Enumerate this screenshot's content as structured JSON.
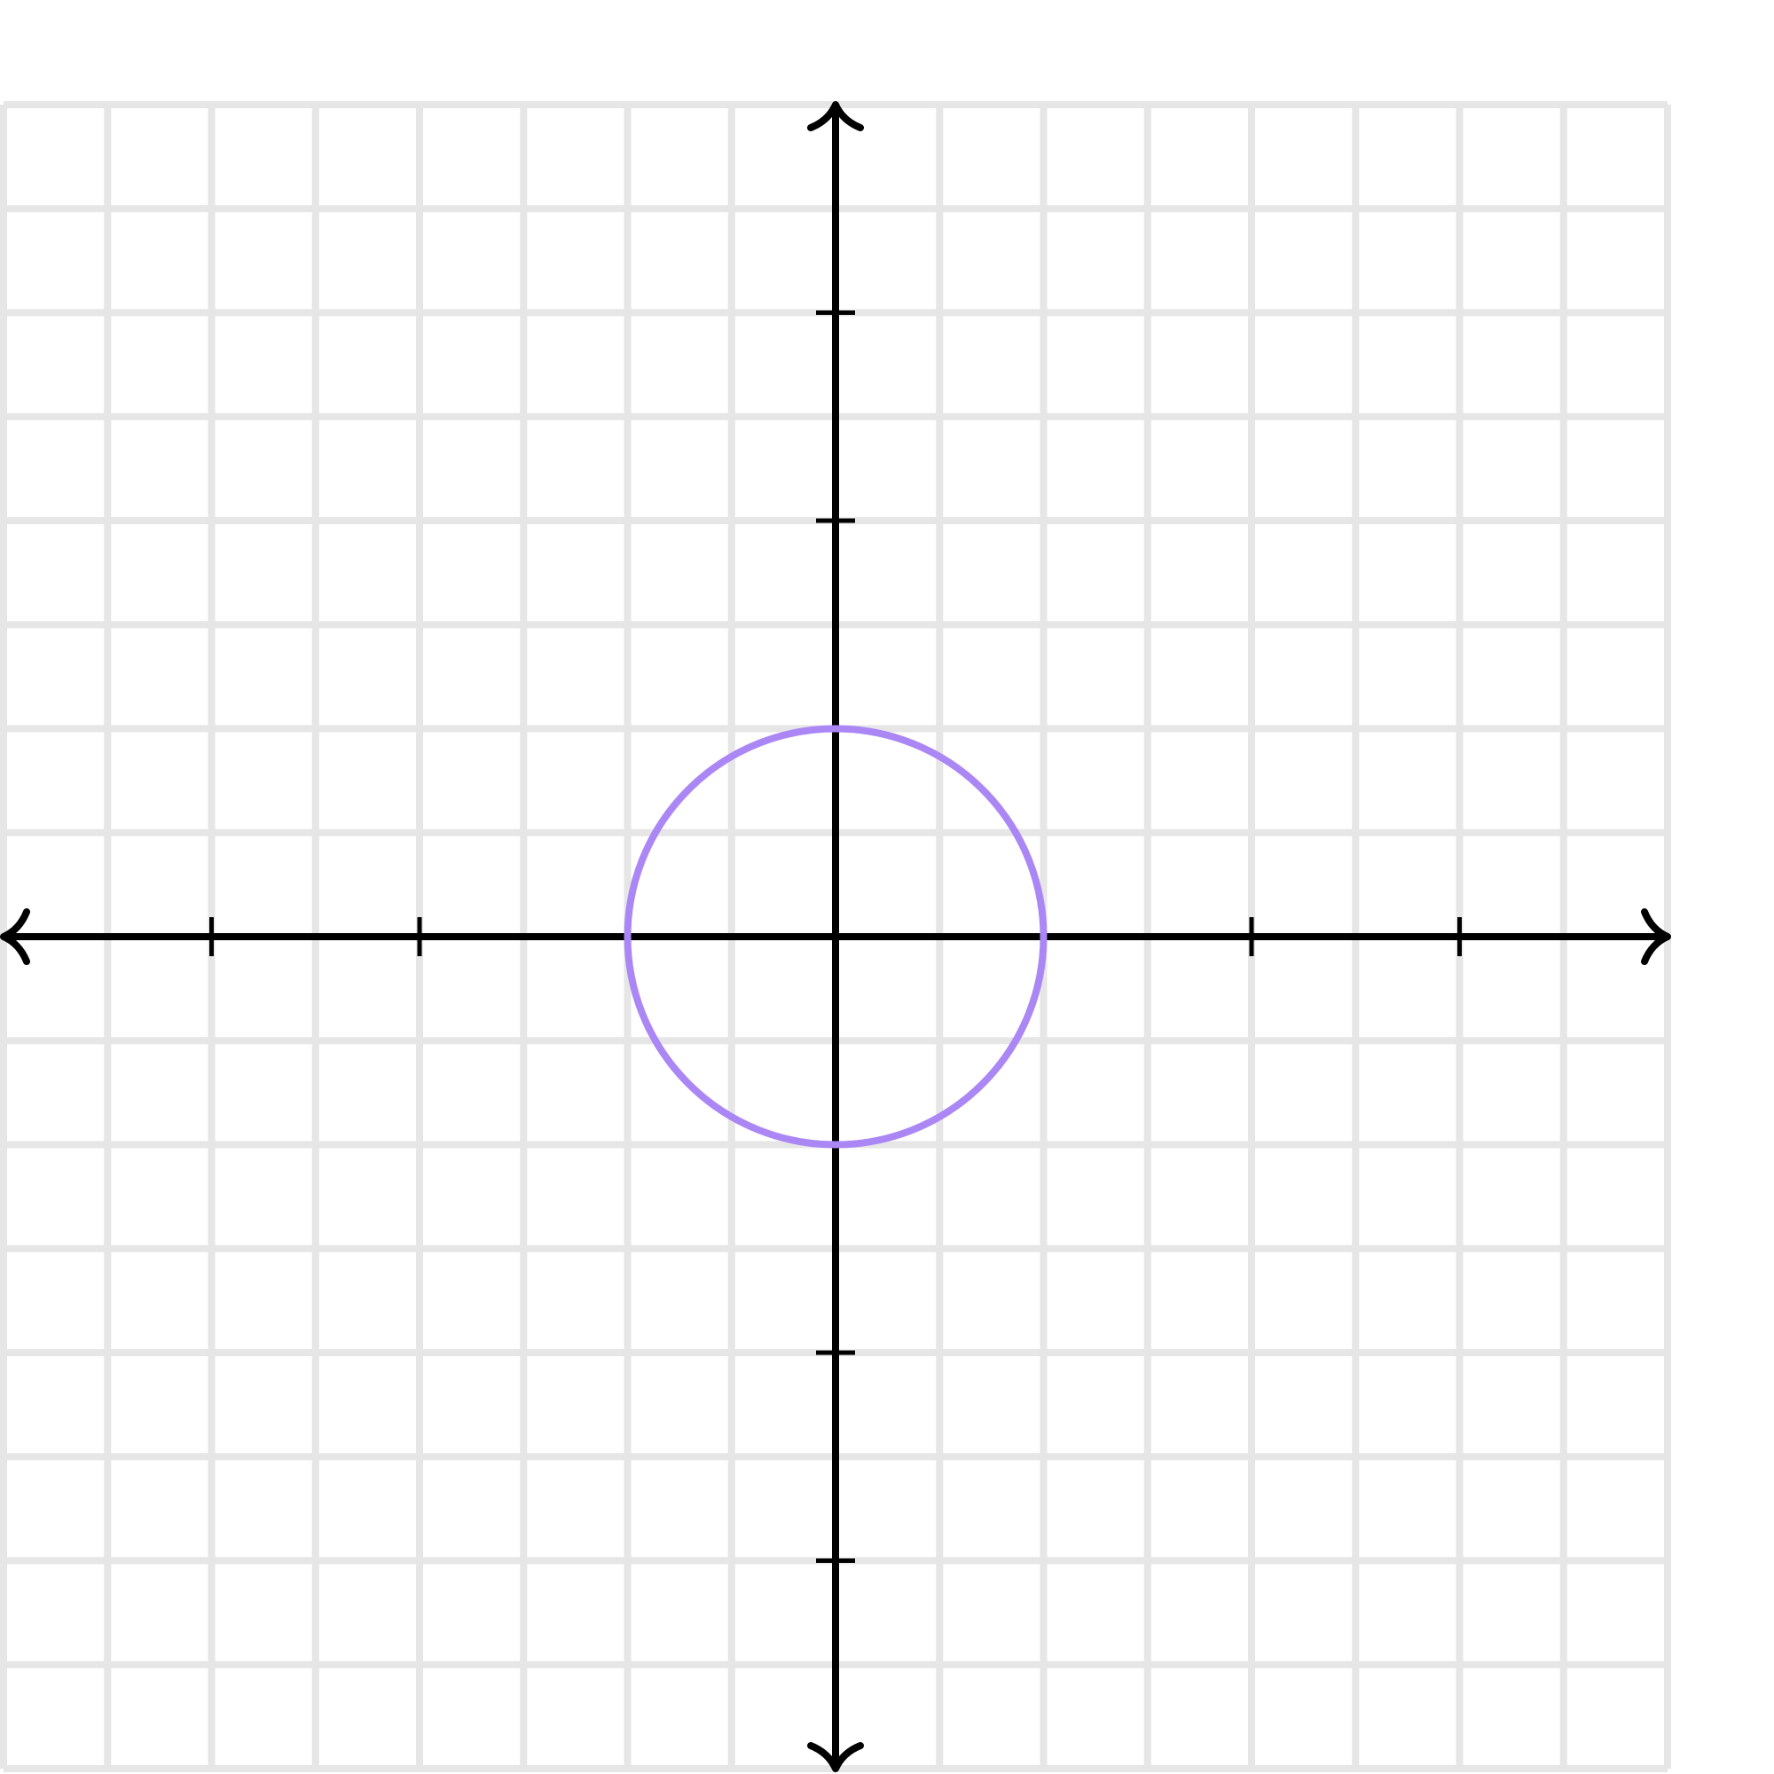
{
  "chart_data": {
    "type": "graph",
    "xlim": [
      -8,
      8
    ],
    "ylim": [
      -8,
      8
    ],
    "grid": true,
    "grid_step": 1,
    "x_ticks": [
      -6,
      -4,
      -2,
      2,
      4,
      6
    ],
    "y_ticks": [
      -6,
      -4,
      -2,
      2,
      4,
      6
    ],
    "tick_labels": false,
    "series": [
      {
        "shape": "circle",
        "center": [
          0,
          0
        ],
        "radius": 2
      }
    ]
  },
  "colors": {
    "grid": "#e6e6e6",
    "axis": "#000000",
    "circle": "#aa87f5",
    "background": "#ffffff"
  }
}
